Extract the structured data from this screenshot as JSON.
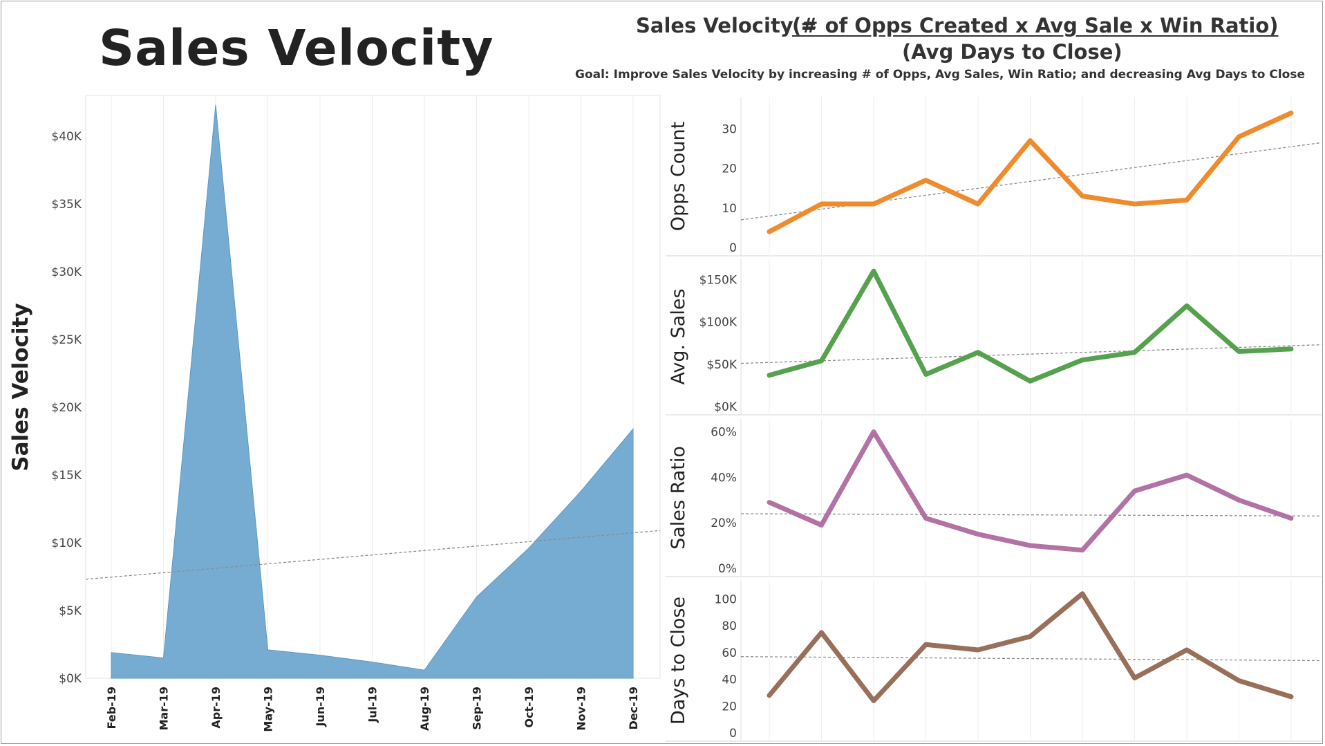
{
  "title": "Sales Velocity",
  "formula": {
    "lhs": "Sales Velocity =",
    "numerator": "(# of Opps Created x Avg Sale x Win Ratio)",
    "denominator": "(Avg Days to Close)"
  },
  "goal": "Goal: Improve Sales Velocity by increasing  # of Opps, Avg Sales, Win Ratio; and decreasing Avg Days to Close",
  "chart_data": [
    {
      "type": "area",
      "ylabel": "Sales Velocity",
      "x": [
        "Feb-19",
        "Mar-19",
        "Apr-19",
        "May-19",
        "Jun-19",
        "Jul-19",
        "Aug-19",
        "Sep-19",
        "Oct-19",
        "Nov-19",
        "Dec-19"
      ],
      "values": [
        1900,
        1500,
        42300,
        2100,
        1700,
        1200,
        600,
        6000,
        9600,
        13800,
        18400
      ],
      "trend": [
        7300,
        10900
      ],
      "ylim": [
        0,
        43000
      ],
      "yticks": [
        0,
        5000,
        10000,
        15000,
        20000,
        25000,
        30000,
        35000,
        40000
      ],
      "ytick_labels": [
        "$0K",
        "$5K",
        "$10K",
        "$15K",
        "$20K",
        "$25K",
        "$30K",
        "$35K",
        "$40K"
      ],
      "color": "#6fa8d0",
      "grid": "vertical"
    },
    {
      "type": "line",
      "ylabel": "Opps Count",
      "x": [
        "Feb-19",
        "Mar-19",
        "Apr-19",
        "May-19",
        "Jun-19",
        "Jul-19",
        "Aug-19",
        "Sep-19",
        "Oct-19",
        "Nov-19",
        "Dec-19"
      ],
      "values": [
        4,
        11,
        11,
        17,
        11,
        27,
        13,
        11,
        12,
        28,
        34
      ],
      "trend": [
        7,
        26.5
      ],
      "ylim": [
        0,
        36
      ],
      "yticks": [
        0,
        10,
        20,
        30
      ],
      "ytick_labels": [
        "0",
        "10",
        "20",
        "30"
      ],
      "color": "#ee8b2d"
    },
    {
      "type": "line",
      "ylabel": "Avg. Sales",
      "x": [
        "Feb-19",
        "Mar-19",
        "Apr-19",
        "May-19",
        "Jun-19",
        "Jul-19",
        "Aug-19",
        "Sep-19",
        "Oct-19",
        "Nov-19",
        "Dec-19"
      ],
      "values": [
        37000,
        54000,
        160000,
        38000,
        64000,
        30000,
        55000,
        64000,
        119000,
        65000,
        68000
      ],
      "trend": [
        51000,
        73000
      ],
      "ylim": [
        0,
        165000
      ],
      "yticks": [
        0,
        50000,
        100000,
        150000
      ],
      "ytick_labels": [
        "$0K",
        "$50K",
        "$100K",
        "$150K"
      ],
      "color": "#55a14d"
    },
    {
      "type": "line",
      "ylabel": "Sales Ratio",
      "x": [
        "Feb-19",
        "Mar-19",
        "Apr-19",
        "May-19",
        "Jun-19",
        "Jul-19",
        "Aug-19",
        "Sep-19",
        "Oct-19",
        "Nov-19",
        "Dec-19"
      ],
      "values": [
        29,
        19,
        60,
        22,
        15,
        10,
        8,
        34,
        41,
        30,
        22
      ],
      "trend": [
        24,
        23
      ],
      "ylim": [
        0,
        62
      ],
      "yticks": [
        0,
        20,
        40,
        60
      ],
      "ytick_labels": [
        "0%",
        "20%",
        "40%",
        "60%"
      ],
      "color": "#b273a4"
    },
    {
      "type": "line",
      "ylabel": "Days to Close",
      "x": [
        "Feb-19",
        "Mar-19",
        "Apr-19",
        "May-19",
        "Jun-19",
        "Jul-19",
        "Aug-19",
        "Sep-19",
        "Oct-19",
        "Nov-19",
        "Dec-19"
      ],
      "values": [
        28,
        75,
        24,
        66,
        62,
        72,
        104,
        41,
        62,
        39,
        27
      ],
      "trend": [
        57,
        54
      ],
      "ylim": [
        0,
        108
      ],
      "yticks": [
        0,
        20,
        40,
        60,
        80,
        100
      ],
      "ytick_labels": [
        "0",
        "20",
        "40",
        "60",
        "80",
        "100"
      ],
      "color": "#98705a"
    }
  ]
}
